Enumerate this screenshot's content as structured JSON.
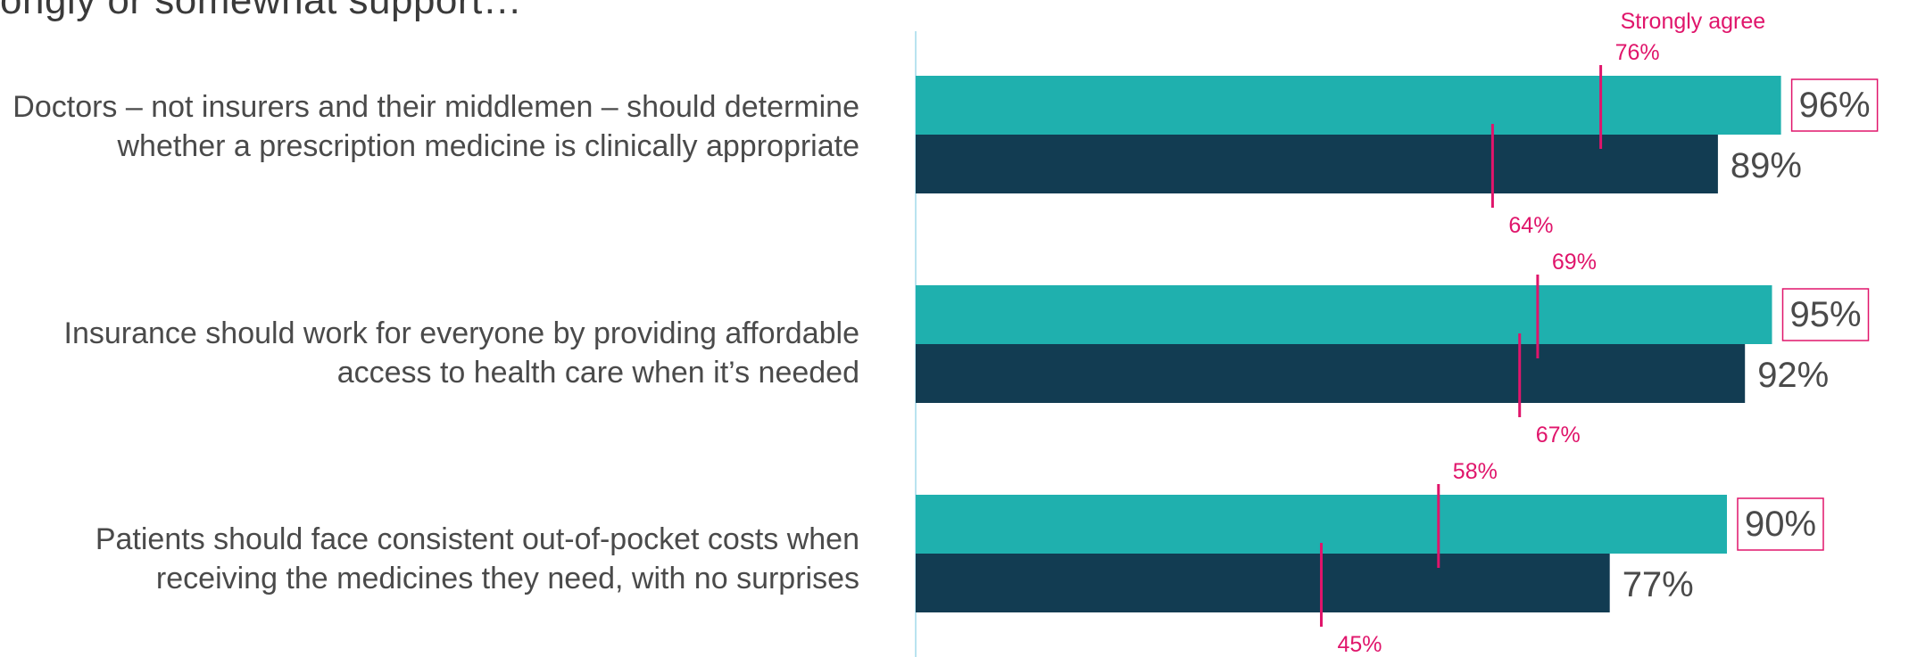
{
  "heading": "ongly or somewhat support…",
  "colors": {
    "series_a": "#1fb0ae",
    "series_b": "#123c52",
    "strongly_agree": "#e0156b",
    "value_text": "#4a4a4a",
    "axis": "#b9e3f0"
  },
  "chart_data": {
    "type": "bar",
    "orientation": "horizontal",
    "categories": [
      "Doctors – not insurers and their middlemen – should determine whether a prescription medicine is clinically appropriate",
      "Insurance should work for everyone by providing affordable access to health care when it’s needed",
      "Patients should face consistent out-of-pocket costs when receiving the medicines they need, with no surprises"
    ],
    "series": [
      {
        "values": [
          96,
          95,
          90
        ],
        "labels": [
          "96%",
          "95%",
          "90%"
        ],
        "strongly_agree": [
          76,
          69,
          58
        ],
        "strongly_agree_labels": [
          "76%",
          "69%",
          "58%"
        ]
      },
      {
        "values": [
          89,
          92,
          77
        ],
        "labels": [
          "89%",
          "92%",
          "77%"
        ],
        "strongly_agree": [
          64,
          67,
          45
        ],
        "strongly_agree_labels": [
          "64%",
          "67%",
          "45%"
        ]
      }
    ],
    "strongly_agree_label": "Strongly agree",
    "xlim": [
      0,
      100
    ],
    "grid": false,
    "legend": "none"
  }
}
